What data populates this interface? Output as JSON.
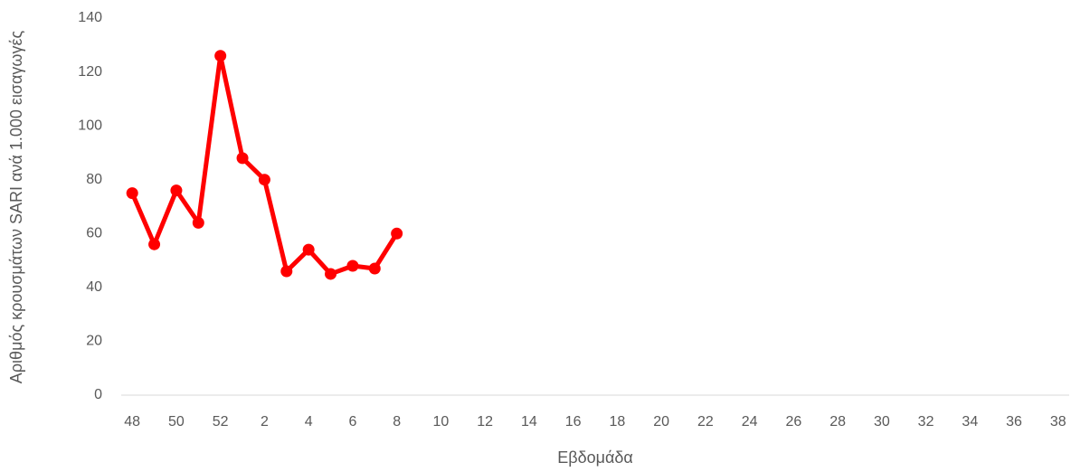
{
  "chart_data": {
    "type": "line",
    "x_label": "Εβδομάδα",
    "y_label": "Αριθμός κρουσμάτων SARI ανά 1.000 εισαγωγές",
    "categories": [
      "48",
      null,
      "50",
      null,
      "52",
      null,
      "2",
      null,
      "4",
      null,
      "6",
      null,
      "8",
      null,
      "10",
      null,
      "12",
      null,
      "14",
      null,
      "16",
      null,
      "18",
      null,
      "20",
      null,
      "22",
      null,
      "24",
      null,
      "26",
      null,
      "28",
      null,
      "30",
      null,
      "32",
      null,
      "34",
      null,
      "36",
      null,
      "38"
    ],
    "series": [
      {
        "color": "#ff0000",
        "values": [
          75,
          56,
          76,
          64,
          126,
          88,
          80,
          46,
          54,
          45,
          48,
          47,
          60,
          null,
          null,
          null,
          null,
          null,
          null,
          null,
          null,
          null,
          null,
          null,
          null,
          null,
          null,
          null,
          null,
          null,
          null,
          null,
          null,
          null,
          null,
          null,
          null,
          null,
          null,
          null,
          null,
          null,
          null
        ]
      }
    ],
    "ylim": [
      0,
      140
    ],
    "yticks": [
      0,
      20,
      40,
      60,
      80,
      100,
      120,
      140
    ],
    "grid": false
  }
}
